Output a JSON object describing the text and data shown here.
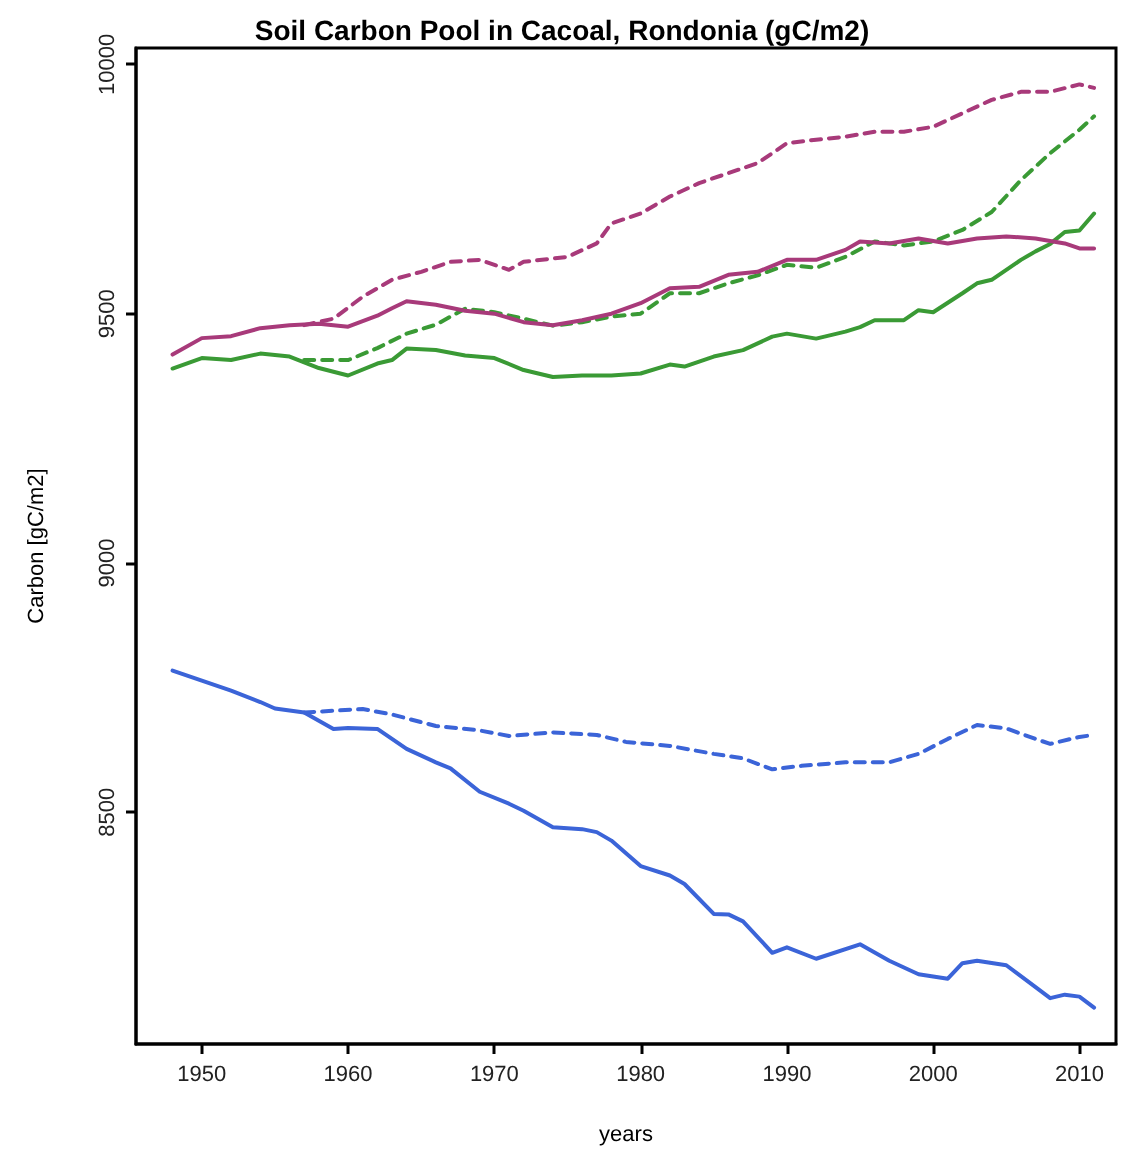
{
  "chart_data": {
    "type": "line",
    "title": "Soil Carbon Pool in Cacoal, Rondonia (gC/m2)",
    "xlabel": "years",
    "ylabel": "Carbon [gC/m2]",
    "xlim": [
      1945.5,
      2012.5
    ],
    "xticks": [
      1950,
      1960,
      1970,
      1980,
      1990,
      2000,
      2010
    ],
    "ylim": [
      8035,
      10033
    ],
    "yticks": [
      8500,
      9000,
      9500,
      10000
    ],
    "grid": false,
    "marker": "none",
    "series": [
      {
        "color": "#3b64d8",
        "line_style": "solid",
        "x": [
          1948,
          1950,
          1952,
          1954,
          1955,
          1957,
          1959,
          1960,
          1962,
          1964,
          1966,
          1967,
          1969,
          1971,
          1972,
          1974,
          1976,
          1977,
          1978,
          1980,
          1982,
          1983,
          1985,
          1986,
          1987,
          1989,
          1990,
          1992,
          1995,
          1997,
          1999,
          2001,
          2002,
          2003,
          2005,
          2007,
          2008,
          2009,
          2010,
          2011
        ],
        "values": [
          8784,
          8764,
          8744,
          8721,
          8708,
          8700,
          8667,
          8669,
          8667,
          8627,
          8600,
          8588,
          8541,
          8517,
          8503,
          8470,
          8466,
          8460,
          8443,
          8392,
          8373,
          8356,
          8296,
          8295,
          8281,
          8218,
          8229,
          8206,
          8235,
          8202,
          8175,
          8166,
          8197,
          8202,
          8193,
          8149,
          8127,
          8134,
          8130,
          8108
        ]
      },
      {
        "color": "#3b64d8",
        "line_style": "dashed",
        "x": [
          1957,
          1961,
          1963,
          1966,
          1969,
          1971,
          1974,
          1977,
          1979,
          1982,
          1985,
          1987,
          1989,
          1991,
          1994,
          1997,
          1999,
          2001,
          2003,
          2005,
          2007,
          2008,
          2010,
          2011
        ],
        "values": [
          8700,
          8707,
          8696,
          8673,
          8664,
          8653,
          8660,
          8655,
          8641,
          8633,
          8617,
          8608,
          8586,
          8593,
          8600,
          8600,
          8617,
          8647,
          8675,
          8668,
          8647,
          8637,
          8651,
          8655
        ]
      },
      {
        "color": "#3a9a35",
        "line_style": "solid",
        "x": [
          1948,
          1950,
          1952,
          1954,
          1956,
          1958,
          1960,
          1962,
          1963,
          1964,
          1966,
          1968,
          1970,
          1972,
          1974,
          1976,
          1978,
          1980,
          1982,
          1983,
          1985,
          1987,
          1989,
          1990,
          1992,
          1994,
          1995,
          1996,
          1998,
          1999,
          2000,
          2002,
          2003,
          2004,
          2006,
          2007,
          2008,
          2009,
          2010,
          2011
        ],
        "values": [
          9390,
          9411,
          9407,
          9420,
          9414,
          9391,
          9376,
          9400,
          9407,
          9430,
          9427,
          9416,
          9411,
          9387,
          9373,
          9376,
          9376,
          9380,
          9398,
          9394,
          9414,
          9427,
          9454,
          9460,
          9450,
          9464,
          9473,
          9487,
          9487,
          9507,
          9503,
          9541,
          9561,
          9568,
          9608,
          9625,
          9640,
          9664,
          9667,
          9701
        ]
      },
      {
        "color": "#3a9a35",
        "line_style": "dashed",
        "x": [
          1957,
          1960,
          1962,
          1964,
          1966,
          1968,
          1970,
          1972,
          1974,
          1976,
          1978,
          1980,
          1982,
          1984,
          1986,
          1988,
          1990,
          1992,
          1994,
          1996,
          1998,
          2000,
          2002,
          2004,
          2006,
          2008,
          2010,
          2011
        ],
        "values": [
          9407,
          9407,
          9431,
          9460,
          9478,
          9510,
          9503,
          9490,
          9476,
          9483,
          9494,
          9500,
          9541,
          9541,
          9561,
          9577,
          9598,
          9592,
          9614,
          9645,
          9637,
          9645,
          9668,
          9704,
          9768,
          9822,
          9869,
          9896
        ]
      },
      {
        "color": "#a83a7a",
        "line_style": "solid",
        "x": [
          1948,
          1950,
          1952,
          1954,
          1956,
          1958,
          1960,
          1962,
          1963,
          1964,
          1966,
          1968,
          1970,
          1972,
          1974,
          1976,
          1978,
          1980,
          1982,
          1984,
          1986,
          1988,
          1990,
          1992,
          1994,
          1995,
          1997,
          1999,
          2001,
          2003,
          2005,
          2007,
          2009,
          2010,
          2011
        ],
        "values": [
          9418,
          9451,
          9455,
          9471,
          9477,
          9480,
          9474,
          9496,
          9511,
          9525,
          9518,
          9506,
          9500,
          9483,
          9477,
          9487,
          9500,
          9521,
          9551,
          9554,
          9578,
          9584,
          9608,
          9608,
          9628,
          9645,
          9641,
          9651,
          9641,
          9651,
          9655,
          9651,
          9641,
          9631,
          9631
        ]
      },
      {
        "color": "#a83a7a",
        "line_style": "dashed",
        "x": [
          1957,
          1959,
          1961,
          1963,
          1965,
          1967,
          1969,
          1971,
          1972,
          1975,
          1977,
          1978,
          1980,
          1982,
          1984,
          1986,
          1988,
          1990,
          1992,
          1994,
          1996,
          1998,
          2000,
          2002,
          2004,
          2006,
          2008,
          2010,
          2011
        ],
        "values": [
          9477,
          9490,
          9534,
          9568,
          9584,
          9604,
          9608,
          9588,
          9604,
          9614,
          9641,
          9681,
          9701,
          9735,
          9762,
          9782,
          9802,
          9842,
          9849,
          9855,
          9865,
          9865,
          9875,
          9902,
          9929,
          9945,
          9945,
          9960,
          9953
        ]
      }
    ]
  }
}
